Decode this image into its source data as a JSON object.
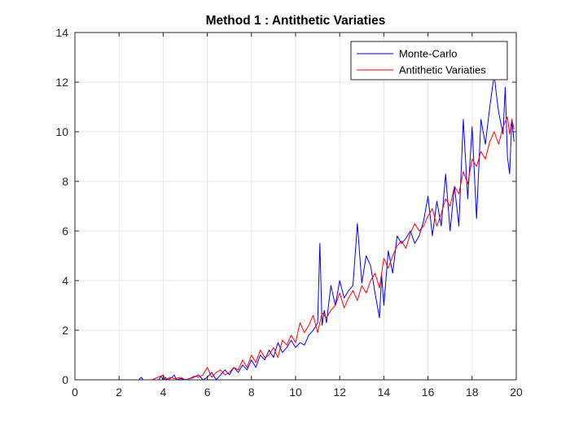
{
  "chart_data": {
    "type": "line",
    "title": "Method 1 : Antithetic Variaties",
    "xlabel": "",
    "ylabel": "",
    "xlim": [
      0,
      20
    ],
    "ylim": [
      0,
      14
    ],
    "xticks": [
      0,
      2,
      4,
      6,
      8,
      10,
      12,
      14,
      16,
      18,
      20
    ],
    "yticks": [
      0,
      2,
      4,
      6,
      8,
      10,
      12,
      14
    ],
    "grid": true,
    "legend_position": "top-right",
    "series": [
      {
        "name": "Monte-Carlo",
        "color": "#0000ff",
        "x": [
          0,
          0.5,
          1,
          1.5,
          2,
          2.5,
          2.9,
          3.0,
          3.1,
          3.5,
          3.8,
          3.9,
          4.0,
          4.1,
          4.2,
          4.4,
          4.5,
          4.6,
          4.8,
          5.0,
          5.2,
          5.4,
          5.6,
          5.8,
          6.0,
          6.2,
          6.4,
          6.6,
          6.8,
          7.0,
          7.2,
          7.4,
          7.6,
          7.8,
          8.0,
          8.2,
          8.4,
          8.6,
          8.8,
          9.0,
          9.2,
          9.4,
          9.6,
          9.8,
          10.0,
          10.2,
          10.4,
          10.6,
          10.8,
          11.0,
          11.1,
          11.2,
          11.3,
          11.4,
          11.6,
          11.8,
          12.0,
          12.2,
          12.4,
          12.6,
          12.8,
          13.0,
          13.2,
          13.4,
          13.6,
          13.8,
          13.9,
          14.0,
          14.2,
          14.4,
          14.6,
          14.8,
          15.0,
          15.2,
          15.4,
          15.6,
          15.8,
          16.0,
          16.2,
          16.4,
          16.6,
          16.8,
          17.0,
          17.2,
          17.4,
          17.6,
          17.8,
          18.0,
          18.2,
          18.4,
          18.6,
          18.8,
          19.0,
          19.1,
          19.2,
          19.4,
          19.5,
          19.6,
          19.7,
          19.8,
          19.9
        ],
        "values": [
          0,
          0,
          0,
          0,
          0,
          0,
          0,
          0.1,
          0,
          0,
          0,
          0.15,
          0,
          0.1,
          0,
          0.1,
          0.2,
          0,
          0.05,
          0,
          0.05,
          0.1,
          0.2,
          0,
          0.1,
          0.3,
          0,
          0.2,
          0.4,
          0.2,
          0.5,
          0.3,
          0.6,
          0.4,
          0.8,
          0.5,
          1.0,
          0.8,
          1.2,
          0.9,
          1.5,
          1.1,
          1.3,
          1.6,
          1.3,
          1.5,
          1.4,
          1.8,
          2.0,
          2.3,
          5.5,
          2.2,
          2.8,
          2.3,
          3.8,
          3.0,
          4.0,
          3.3,
          3.6,
          3.8,
          6.3,
          3.9,
          5.0,
          4.6,
          3.5,
          2.5,
          4.2,
          3.0,
          5.2,
          4.3,
          5.8,
          5.5,
          5.7,
          6.0,
          5.5,
          5.8,
          6.4,
          7.4,
          5.8,
          7.2,
          6.2,
          8.3,
          6.0,
          7.8,
          6.2,
          10.5,
          7.3,
          10.2,
          6.5,
          10.5,
          9.5,
          11.0,
          12.3,
          11.5,
          10.8,
          9.9,
          11.8,
          9.0,
          8.3,
          10.5,
          9.6
        ]
      },
      {
        "name": "Antithetic Variaties",
        "color": "#ff0000",
        "x": [
          0,
          0.5,
          1,
          1.5,
          2,
          2.5,
          3,
          3.5,
          4.0,
          4.1,
          4.3,
          4.5,
          4.8,
          5.0,
          5.2,
          5.4,
          5.6,
          5.8,
          6.0,
          6.2,
          6.4,
          6.6,
          6.8,
          7.0,
          7.2,
          7.4,
          7.6,
          7.8,
          8.0,
          8.2,
          8.4,
          8.6,
          8.8,
          9.0,
          9.2,
          9.4,
          9.6,
          9.8,
          10.0,
          10.2,
          10.4,
          10.6,
          10.8,
          11.0,
          11.2,
          11.4,
          11.6,
          11.8,
          12.0,
          12.2,
          12.4,
          12.6,
          12.8,
          13.0,
          13.2,
          13.4,
          13.6,
          13.8,
          14.0,
          14.2,
          14.4,
          14.6,
          14.8,
          15.0,
          15.2,
          15.4,
          15.6,
          15.8,
          16.0,
          16.2,
          16.4,
          16.6,
          16.8,
          17.0,
          17.2,
          17.4,
          17.6,
          17.8,
          18.0,
          18.2,
          18.4,
          18.6,
          18.8,
          19.0,
          19.2,
          19.4,
          19.6,
          19.7,
          19.8,
          19.9
        ],
        "values": [
          0,
          0,
          0,
          0,
          0,
          0,
          0,
          0,
          0.2,
          0,
          0.1,
          0.05,
          0.1,
          0,
          0.05,
          0.15,
          0.1,
          0.2,
          0.5,
          0.1,
          0.3,
          0.4,
          0.2,
          0.3,
          0.5,
          0.4,
          0.8,
          0.5,
          1.0,
          0.7,
          1.2,
          0.9,
          1.0,
          1.3,
          0.9,
          1.6,
          1.4,
          1.8,
          1.5,
          2.3,
          1.9,
          2.2,
          2.6,
          1.9,
          2.7,
          2.5,
          2.8,
          3.0,
          3.5,
          2.9,
          3.3,
          3.6,
          3.2,
          3.8,
          3.5,
          4.0,
          4.3,
          3.7,
          4.9,
          4.5,
          5.0,
          5.4,
          5.6,
          5.3,
          5.9,
          6.3,
          6.0,
          6.2,
          6.6,
          6.9,
          6.2,
          6.7,
          7.3,
          7.0,
          7.8,
          7.5,
          8.4,
          7.9,
          8.9,
          8.6,
          9.2,
          8.9,
          9.6,
          10.0,
          9.5,
          10.2,
          10.6,
          9.9,
          10.5,
          10.1
        ]
      }
    ]
  }
}
